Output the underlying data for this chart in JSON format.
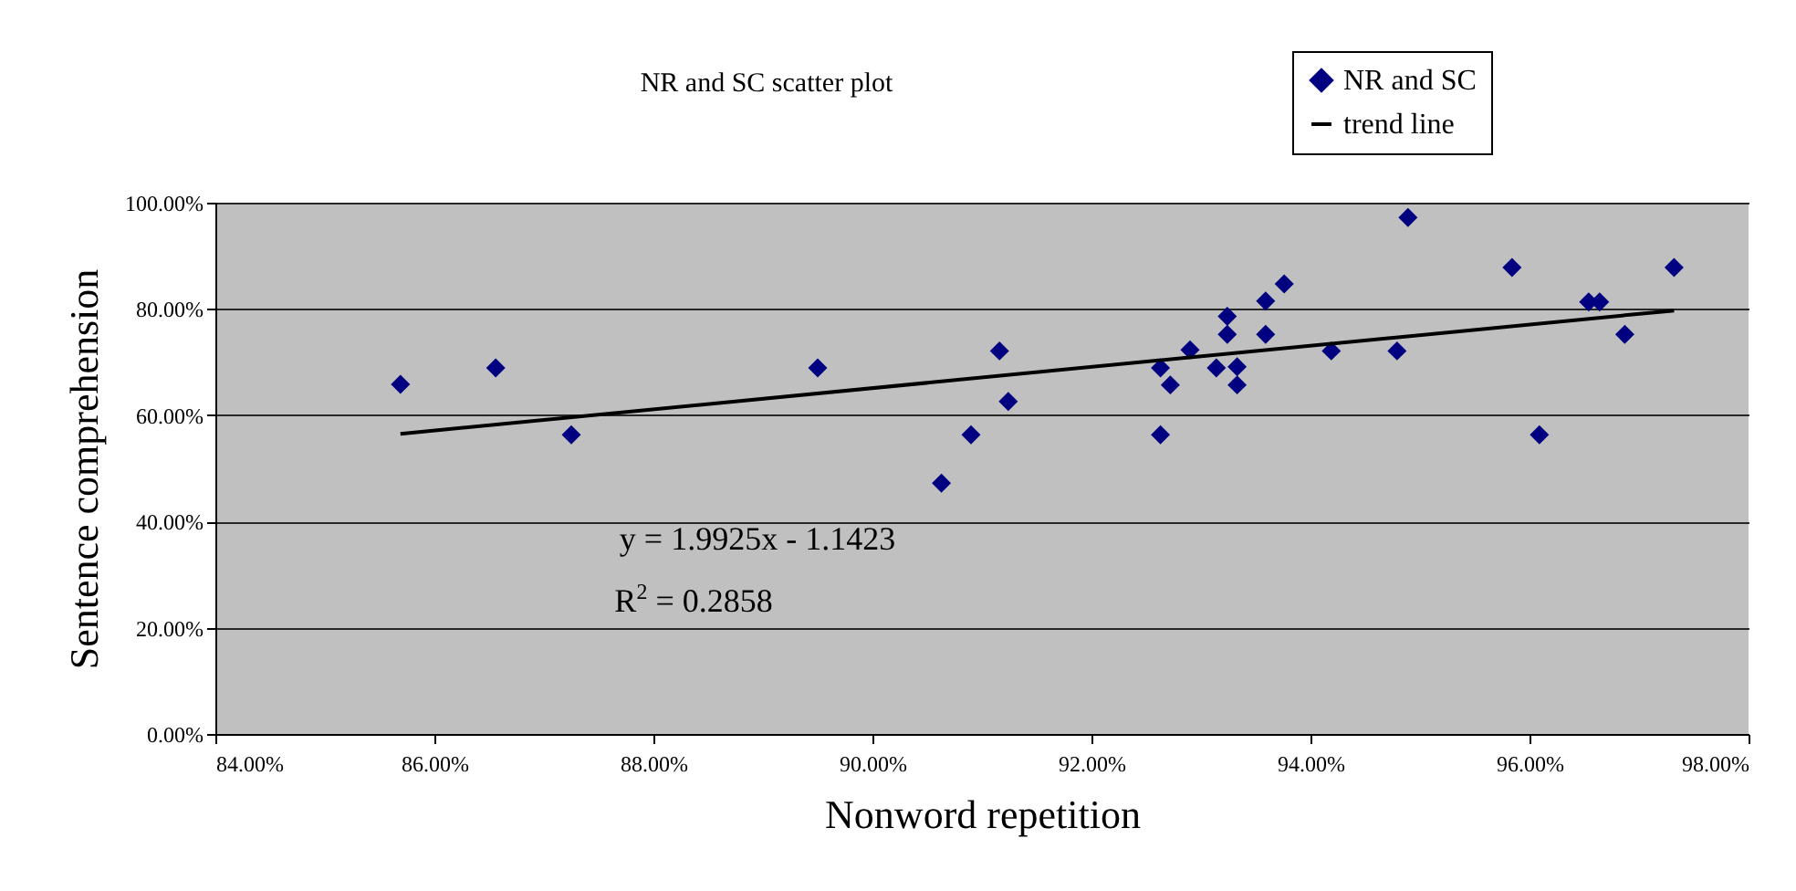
{
  "chart_data": {
    "type": "scatter",
    "title": "NR and SC scatter plot",
    "xlabel": "Nonword repetition",
    "ylabel": "Sentence comprehension",
    "xlim": [
      84,
      98
    ],
    "xticks": [
      {
        "value": 84,
        "label": "84.00%"
      },
      {
        "value": 86,
        "label": "86.00%"
      },
      {
        "value": 88,
        "label": "88.00%"
      },
      {
        "value": 90,
        "label": "90.00%"
      },
      {
        "value": 92,
        "label": "92.00%"
      },
      {
        "value": 94,
        "label": "94.00%"
      },
      {
        "value": 96,
        "label": "96.00%"
      },
      {
        "value": 98,
        "label": "98.00%"
      }
    ],
    "ylim": [
      0,
      100
    ],
    "yticks": [
      {
        "value": 0,
        "label": "0.00%"
      },
      {
        "value": 20,
        "label": "20.00%"
      },
      {
        "value": 40,
        "label": "40.00%"
      },
      {
        "value": 60,
        "label": "60.00%"
      },
      {
        "value": 80,
        "label": "80.00%"
      },
      {
        "value": 100,
        "label": "100.00%"
      }
    ],
    "grid": "y",
    "legend": "top right",
    "annotations": [
      "y = 1.9925x - 1.1423",
      "R$^{2}$ = 0.2858"
    ],
    "series": [
      {
        "name": "NR and SC",
        "marker": "diamond",
        "color": "#000080",
        "x": [
          85.69,
          86.56,
          87.25,
          89.5,
          90.63,
          90.9,
          91.16,
          91.24,
          92.63,
          92.63,
          92.72,
          92.9,
          93.14,
          93.24,
          93.24,
          93.33,
          93.33,
          93.59,
          93.59,
          93.76,
          94.19,
          94.79,
          94.89,
          95.84,
          96.09,
          96.54,
          96.64,
          96.87,
          97.32
        ],
        "values": [
          65.8,
          68.9,
          56.3,
          68.9,
          47.2,
          56.3,
          72.1,
          62.6,
          68.9,
          56.3,
          65.7,
          72.3,
          68.9,
          78.6,
          75.2,
          69.1,
          65.7,
          81.5,
          75.2,
          84.7,
          72.1,
          72.1,
          97.2,
          87.8,
          56.3,
          81.3,
          81.3,
          75.2,
          87.8
        ]
      },
      {
        "name": "trend line",
        "type": "line",
        "color": "#000000",
        "line_style": "solid",
        "x": [
          85.69,
          97.32
        ],
        "values": [
          56.5,
          79.7
        ]
      }
    ]
  }
}
